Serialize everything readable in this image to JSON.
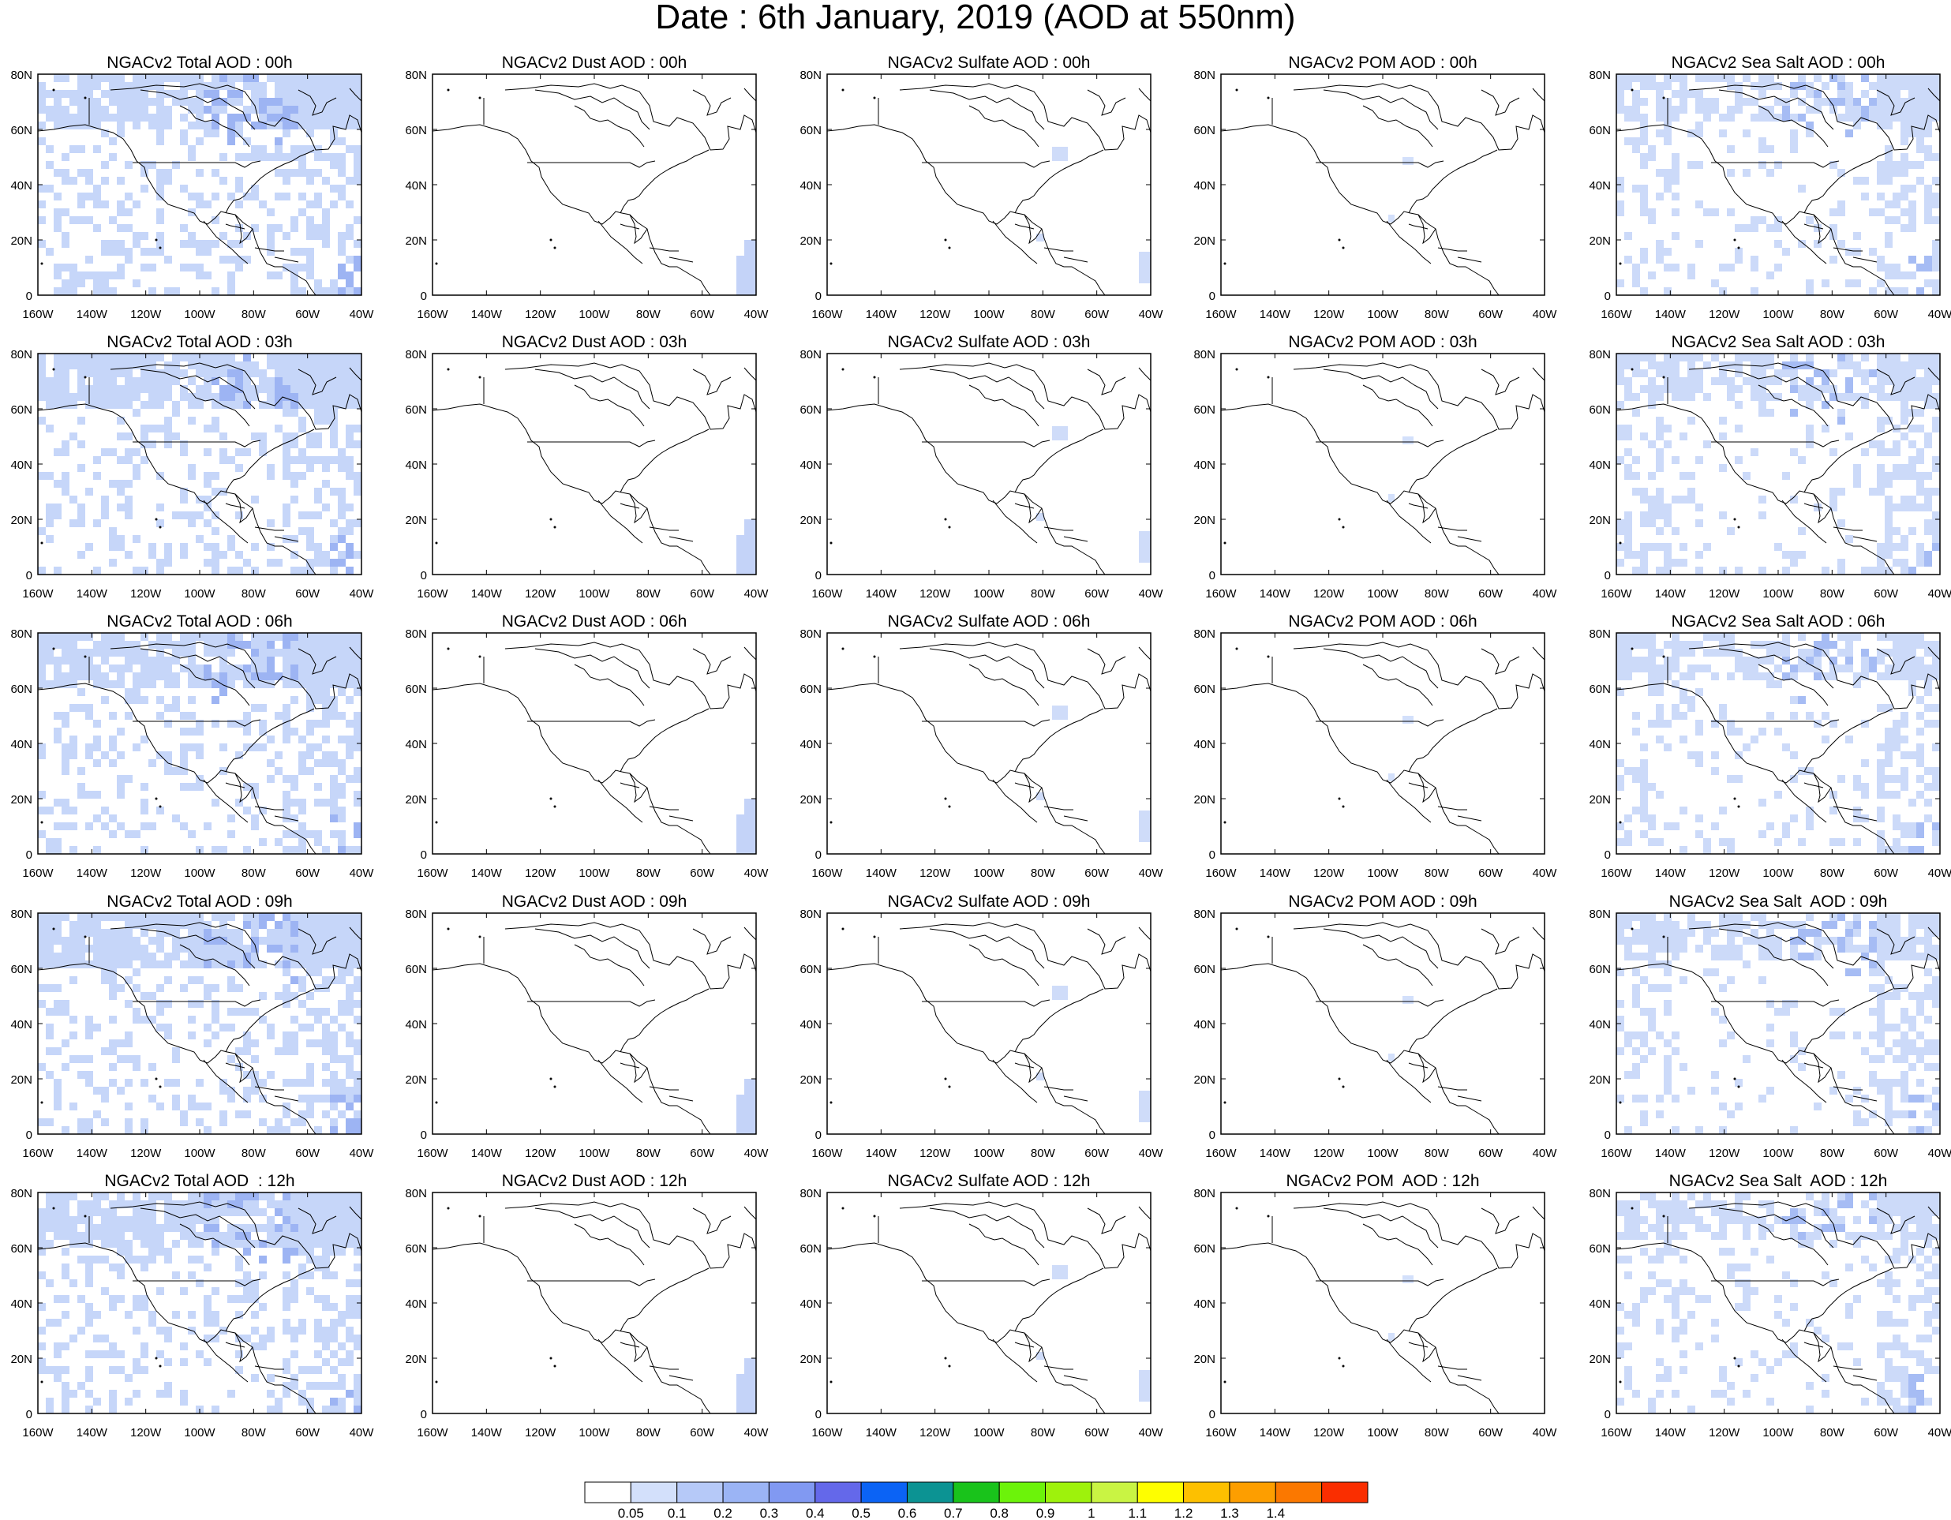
{
  "title": "Date : 6th January, 2019 (AOD at 550nm)",
  "lat_ticks": [
    "80N",
    "60N",
    "40N",
    "20N",
    "0"
  ],
  "lon_ticks": [
    "160W",
    "140W",
    "120W",
    "100W",
    "80W",
    "60W",
    "40W"
  ],
  "rows": [
    [
      "NGACv2 Total AOD : 00h",
      "NGACv2 Dust AOD : 00h",
      "NGACv2 Sulfate AOD : 00h",
      "NGACv2 POM AOD : 00h",
      "NGACv2 Sea Salt AOD : 00h"
    ],
    [
      "NGACv2 Total AOD : 03h",
      "NGACv2 Dust AOD : 03h",
      "NGACv2 Sulfate AOD : 03h",
      "NGACv2 POM AOD : 03h",
      "NGACv2 Sea Salt AOD : 03h"
    ],
    [
      "NGACv2 Total AOD : 06h",
      "NGACv2 Dust AOD : 06h",
      "NGACv2 Sulfate AOD : 06h",
      "NGACv2 POM AOD : 06h",
      "NGACv2 Sea Salt AOD : 06h"
    ],
    [
      "NGACv2 Total AOD : 09h",
      "NGACv2 Dust AOD : 09h",
      "NGACv2 Sulfate AOD : 09h",
      "NGACv2 POM AOD : 09h",
      "NGACv2 Sea Salt  AOD : 09h"
    ],
    [
      "NGACv2 Total AOD  : 12h",
      "NGACv2 Dust AOD : 12h",
      "NGACv2 Sulfate AOD : 12h",
      "NGACv2 POM  AOD : 12h",
      "NGACv2 Sea Salt  AOD : 12h"
    ]
  ],
  "colorbar": {
    "levels": [
      "0.05",
      "0.1",
      "0.2",
      "0.3",
      "0.4",
      "0.5",
      "0.6",
      "0.7",
      "0.8",
      "0.9",
      "1",
      "1.1",
      "1.2",
      "1.3",
      "1.4"
    ],
    "colors": [
      "#ffffff",
      "#d3e0fb",
      "#b6c9f8",
      "#9bb4f5",
      "#8199f2",
      "#6468ea",
      "#0b63f5",
      "#0c9393",
      "#19c31b",
      "#6cf30a",
      "#9ef20c",
      "#c9f443",
      "#fefe00",
      "#fdc000",
      "#fd9e00",
      "#fb7800",
      "#fa2e00"
    ]
  },
  "colormap_panels": {
    "total": "#c6d6f9",
    "total_dark": "#9db4f3",
    "seasalt": "#ccdaf9",
    "seasalt_dark": "#a6bcf4",
    "dust": "#c4d3f8",
    "sulfate": "#cfdcf9",
    "pom": "#d3e0fb"
  }
}
